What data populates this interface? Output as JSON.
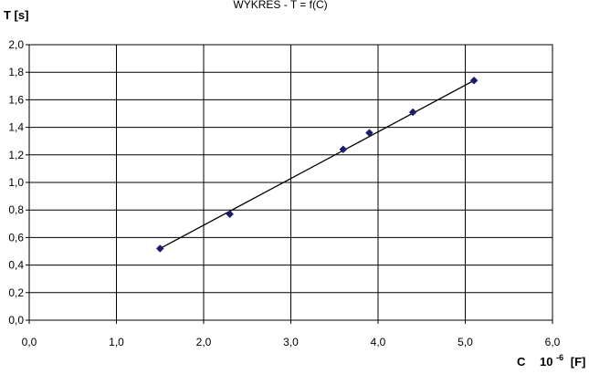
{
  "chart_data": {
    "type": "scatter",
    "title": "WYKRES  -   T = f(C)",
    "ylabel": "T [s]",
    "xlabel": {
      "prefix": "C",
      "base": "10",
      "exponent": "-6",
      "unit": "[F]"
    },
    "xlim": [
      0,
      6
    ],
    "ylim": [
      0,
      2
    ],
    "x_ticks": [
      {
        "value": 0,
        "label": "0,0"
      },
      {
        "value": 1,
        "label": "1,0"
      },
      {
        "value": 2,
        "label": "2,0"
      },
      {
        "value": 3,
        "label": "3,0"
      },
      {
        "value": 4,
        "label": "4,0"
      },
      {
        "value": 5,
        "label": "5,0"
      },
      {
        "value": 6,
        "label": "6,0"
      }
    ],
    "y_ticks": [
      {
        "value": 0.0,
        "label": "0,0"
      },
      {
        "value": 0.2,
        "label": "0,2"
      },
      {
        "value": 0.4,
        "label": "0,4"
      },
      {
        "value": 0.6,
        "label": "0,6"
      },
      {
        "value": 0.8,
        "label": "0,8"
      },
      {
        "value": 1.0,
        "label": "1,0"
      },
      {
        "value": 1.2,
        "label": "1,2"
      },
      {
        "value": 1.4,
        "label": "1,4"
      },
      {
        "value": 1.6,
        "label": "1,6"
      },
      {
        "value": 1.8,
        "label": "1,8"
      },
      {
        "value": 2.0,
        "label": "2,0"
      }
    ],
    "grid": true,
    "series": [
      {
        "points": [
          {
            "x": 1.5,
            "y": 0.52
          },
          {
            "x": 2.3,
            "y": 0.77
          },
          {
            "x": 3.6,
            "y": 1.24
          },
          {
            "x": 3.9,
            "y": 1.36
          },
          {
            "x": 4.4,
            "y": 1.51
          },
          {
            "x": 5.1,
            "y": 1.74
          }
        ],
        "marker": "diamond",
        "marker_color": "#1a1a6e"
      }
    ],
    "trendline": {
      "type": "linear",
      "from": {
        "x": 1.5,
        "y": 0.52
      },
      "to": {
        "x": 5.1,
        "y": 1.74
      },
      "color": "#000000"
    }
  }
}
